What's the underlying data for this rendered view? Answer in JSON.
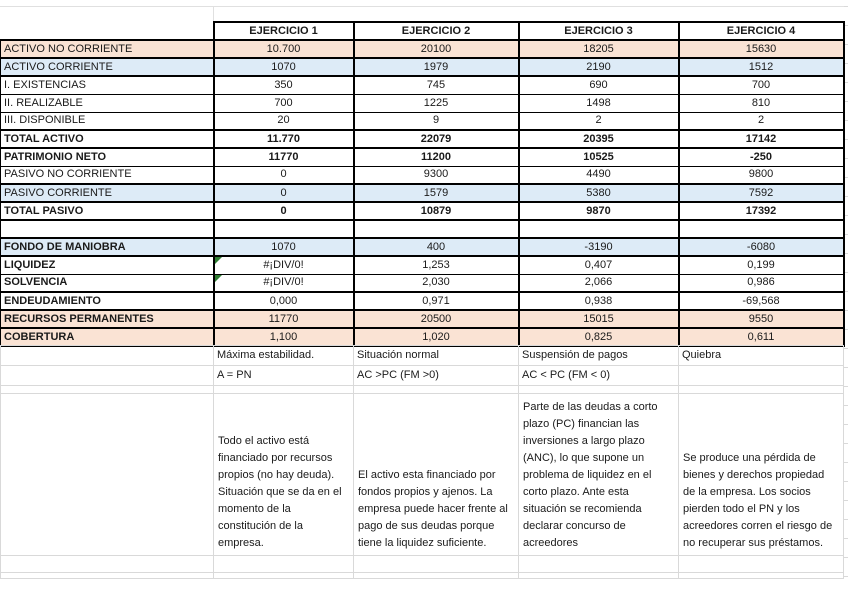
{
  "table": {
    "headers": [
      "EJERCICIO 1",
      "EJERCICIO 2",
      "EJERCICIO 3",
      "EJERCICIO 4"
    ],
    "rows": [
      {
        "label": "ACTIVO NO CORRIENTE",
        "values": [
          "10.700",
          "20100",
          "18205",
          "15630"
        ],
        "fill": "peach",
        "label_bold": false,
        "values_bold": false,
        "red": [
          false,
          false,
          false,
          false
        ],
        "error": [
          false,
          false,
          false,
          false
        ],
        "bb": "thick"
      },
      {
        "label": "ACTIVO CORRIENTE",
        "values": [
          "1070",
          "1979",
          "2190",
          "1512"
        ],
        "fill": "blue",
        "label_bold": false,
        "values_bold": false,
        "red": [
          false,
          false,
          false,
          false
        ],
        "error": [
          false,
          false,
          false,
          false
        ],
        "bb": "thick"
      },
      {
        "label": "I. EXISTENCIAS",
        "values": [
          "350",
          "745",
          "690",
          "700"
        ],
        "fill": null,
        "label_bold": false,
        "values_bold": false,
        "red": [
          false,
          false,
          false,
          false
        ],
        "error": [
          false,
          false,
          false,
          false
        ],
        "bb": "thin"
      },
      {
        "label": "II. REALIZABLE",
        "values": [
          "700",
          "1225",
          "1498",
          "810"
        ],
        "fill": null,
        "label_bold": false,
        "values_bold": false,
        "red": [
          false,
          false,
          false,
          false
        ],
        "error": [
          false,
          false,
          false,
          false
        ],
        "bb": "thin"
      },
      {
        "label": "III. DISPONIBLE",
        "values": [
          "20",
          "9",
          "2",
          "2"
        ],
        "fill": null,
        "label_bold": false,
        "values_bold": false,
        "red": [
          false,
          false,
          false,
          false
        ],
        "error": [
          false,
          false,
          false,
          false
        ],
        "bb": "thick"
      },
      {
        "label": "TOTAL ACTIVO",
        "values": [
          "11.770",
          "22079",
          "20395",
          "17142"
        ],
        "fill": null,
        "label_bold": true,
        "values_bold": true,
        "red": [
          false,
          false,
          false,
          false
        ],
        "error": [
          false,
          false,
          false,
          false
        ],
        "bb": "thick"
      },
      {
        "label": "PATRIMONIO NETO",
        "values": [
          "11770",
          "11200",
          "10525",
          "-250"
        ],
        "fill": null,
        "label_bold": true,
        "values_bold": true,
        "red": [
          false,
          false,
          false,
          true
        ],
        "error": [
          false,
          false,
          false,
          false
        ],
        "bb": "thin"
      },
      {
        "label": "PASIVO NO CORRIENTE",
        "values": [
          "0",
          "9300",
          "4490",
          "9800"
        ],
        "fill": null,
        "label_bold": false,
        "values_bold": false,
        "red": [
          false,
          false,
          false,
          false
        ],
        "error": [
          false,
          false,
          false,
          false
        ],
        "bb": "thick"
      },
      {
        "label": "PASIVO CORRIENTE",
        "values": [
          "0",
          "1579",
          "5380",
          "7592"
        ],
        "fill": "blue",
        "label_bold": false,
        "values_bold": false,
        "red": [
          false,
          false,
          false,
          false
        ],
        "error": [
          false,
          false,
          false,
          false
        ],
        "bb": "thick"
      },
      {
        "label": "TOTAL PASIVO",
        "values": [
          "0",
          "10879",
          "9870",
          "17392"
        ],
        "fill": null,
        "label_bold": true,
        "values_bold": true,
        "red": [
          false,
          false,
          false,
          false
        ],
        "error": [
          false,
          false,
          false,
          false
        ],
        "bb": "thick"
      },
      {
        "label": "",
        "values": [
          "",
          "",
          "",
          ""
        ],
        "fill": null,
        "label_bold": false,
        "values_bold": false,
        "red": [
          false,
          false,
          false,
          false
        ],
        "error": [
          false,
          false,
          false,
          false
        ],
        "bb": "thick"
      },
      {
        "label": "FONDO DE MANIOBRA",
        "values": [
          "1070",
          "400",
          "-3190",
          "-6080"
        ],
        "fill": "blue",
        "label_bold": true,
        "values_bold": false,
        "red": [
          false,
          false,
          true,
          true
        ],
        "error": [
          false,
          false,
          false,
          false
        ],
        "bb": "thick"
      },
      {
        "label": "LIQUIDEZ",
        "values": [
          "#¡DIV/0!",
          "1,253",
          "0,407",
          "0,199"
        ],
        "fill": null,
        "label_bold": true,
        "values_bold": false,
        "red": [
          false,
          false,
          true,
          true
        ],
        "error": [
          true,
          false,
          false,
          false
        ],
        "bb": "thin"
      },
      {
        "label": "SOLVENCIA",
        "values": [
          "#¡DIV/0!",
          "2,030",
          "2,066",
          "0,986"
        ],
        "fill": null,
        "label_bold": true,
        "values_bold": false,
        "red": [
          false,
          false,
          false,
          true
        ],
        "error": [
          true,
          false,
          false,
          false
        ],
        "bb": "thick"
      },
      {
        "label": "ENDEUDAMIENTO",
        "values": [
          "0,000",
          "0,971",
          "0,938",
          "-69,568"
        ],
        "fill": null,
        "label_bold": true,
        "values_bold": false,
        "red": [
          false,
          false,
          false,
          true
        ],
        "error": [
          false,
          false,
          false,
          false
        ],
        "bb": "thick"
      },
      {
        "label": "RECURSOS PERMANENTES",
        "values": [
          "11770",
          "20500",
          "15015",
          "9550"
        ],
        "fill": "peach",
        "label_bold": true,
        "values_bold": false,
        "red": [
          false,
          false,
          false,
          false
        ],
        "error": [
          false,
          false,
          false,
          false
        ],
        "bb": "thick"
      },
      {
        "label": "COBERTURA",
        "values": [
          "1,100",
          "1,020",
          "0,825",
          "0,611"
        ],
        "fill": "peach",
        "label_bold": true,
        "values_bold": false,
        "red": [
          false,
          false,
          false,
          false
        ],
        "error": [
          false,
          false,
          false,
          false
        ],
        "bb": "thick"
      }
    ]
  },
  "notes": {
    "row1": [
      "Máxima estabilidad.",
      "Situación normal",
      "Suspensión de pagos",
      "Quiebra"
    ],
    "row2": [
      "A = PN",
      "AC >PC (FM >0)",
      "AC < PC (FM < 0)",
      ""
    ],
    "paragraphs": [
      "Todo el activo está financiado por recursos propios (no hay deuda). Situación que se da en el momento de la constitución de la empresa.",
      "El activo esta financiado por fondos propios y ajenos. La empresa puede hacer frente al pago de sus deudas porque tiene la liquidez suficiente.",
      "Parte de las deudas a corto plazo (PC) financian las inversiones a largo plazo (ANC), lo que supone un problema de liquidez en el corto plazo. Ante esta situación se recomienda declarar concurso de acreedores",
      "Se produce una pérdida de bienes y derechos propiedad de la empresa. Los socios pierden todo el PN y los acreedores corren el riesgo de no recuperar sus préstamos."
    ]
  },
  "colors": {
    "fill_peach": "#fae3d4",
    "fill_blue": "#ddebf7",
    "negative_red": "#e8342c",
    "table_border": "#000000",
    "gridline": "#d9d9d9",
    "error_indicator_green": "#2e7d32"
  },
  "icons": {
    "error_indicator": "excel-error-corner-triangle"
  }
}
